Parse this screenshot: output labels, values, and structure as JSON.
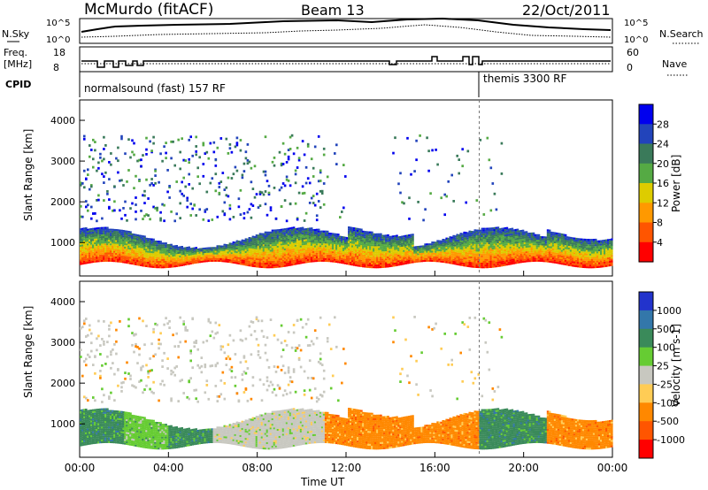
{
  "header": {
    "station": "McMurdo (fitACF)",
    "beam": "Beam 13",
    "date": "22/Oct/2011"
  },
  "top_panels": {
    "nsky_label": "N.Sky",
    "nsky_ticks": [
      "10^5",
      "10^0"
    ],
    "nsearch_label": "N.Search",
    "nsearch_ticks": [
      "10^5",
      "10^0"
    ],
    "freq_label_1": "Freq.",
    "freq_label_2": "[MHz]",
    "freq_ticks": [
      "18",
      "8"
    ],
    "nave_label": "Nave",
    "nave_ticks": [
      "60",
      "0"
    ],
    "cpid_label": "CPID",
    "cpid_segments": [
      {
        "label": "normalsound (fast) 157 RF",
        "start_hour": 0
      },
      {
        "label": "themis 3300 RF",
        "start_hour": 18
      }
    ]
  },
  "chart_data": [
    {
      "type": "heatmap",
      "title": "",
      "ylabel": "Slant Range [km]",
      "xlabel": "",
      "ylim": [
        180,
        4500
      ],
      "y_ticks": [
        "4000",
        "3000",
        "2000",
        "1000"
      ],
      "colorbar_label": "Power [dB]",
      "colorbar_ticks": [
        "28",
        "24",
        "20",
        "16",
        "12",
        "8",
        "4"
      ],
      "colorbar_colors": [
        "#0000ee",
        "#2244bb",
        "#3a7a5a",
        "#55aa44",
        "#ddcc00",
        "#ff9900",
        "#ff5500",
        "#ff0000"
      ]
    },
    {
      "type": "heatmap",
      "title": "",
      "ylabel": "Slant Range [km]",
      "xlabel": "Time UT",
      "x_ticks": [
        "00:00",
        "04:00",
        "08:00",
        "12:00",
        "16:00",
        "20:00",
        "00:00"
      ],
      "xlim": [
        0,
        24
      ],
      "ylim": [
        180,
        4500
      ],
      "y_ticks": [
        "4000",
        "3000",
        "2000",
        "1000"
      ],
      "colorbar_label": "Velocity [m s-1]",
      "colorbar_ticks": [
        "1000",
        "500",
        "100",
        "25",
        "-25",
        "-100",
        "-500",
        "-1000"
      ],
      "colorbar_colors": [
        "#2233cc",
        "#3377aa",
        "#3a8a5a",
        "#66cc33",
        "#c8c8c0",
        "#ffcc55",
        "#ff8800",
        "#ff5500",
        "#ff0000"
      ]
    }
  ]
}
